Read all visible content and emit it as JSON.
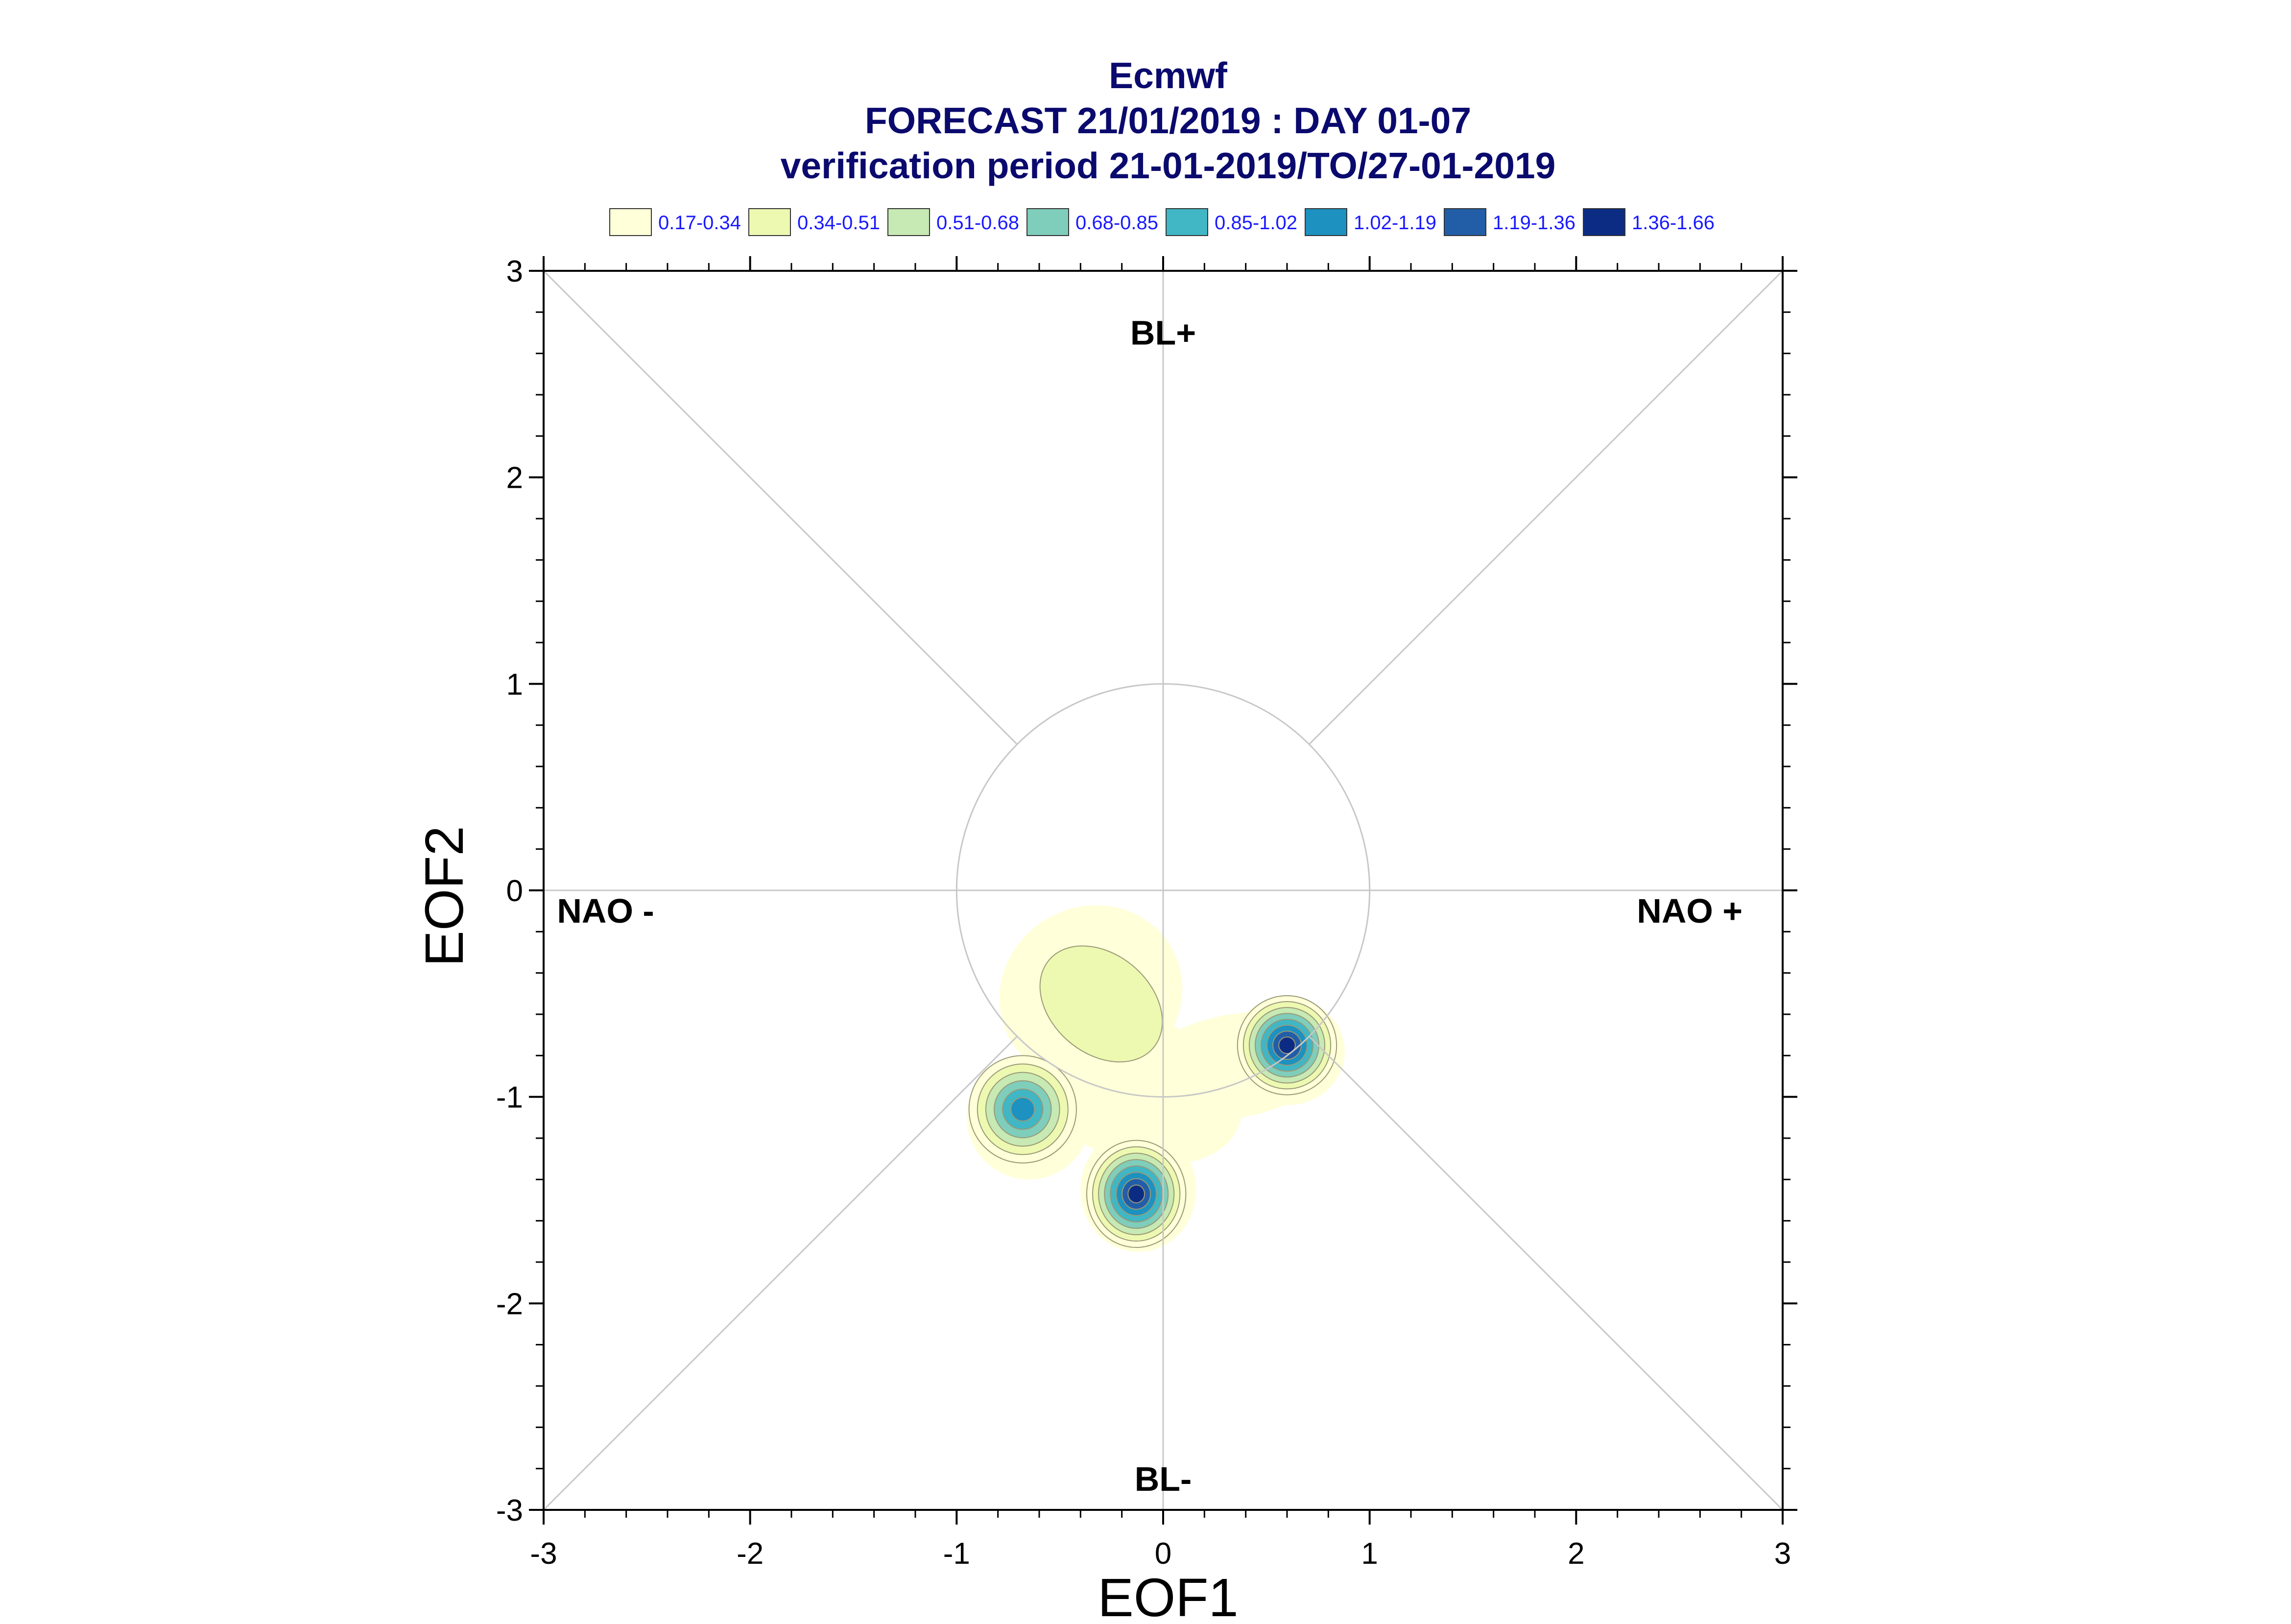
{
  "chart_data": {
    "type": "heatmap",
    "title": "Ecmwf",
    "subtitle_lines": [
      "FORECAST 21/01/2019 : DAY 01-07",
      "verification period 21-01-2019/TO/27-01-2019"
    ],
    "xlabel": "EOF1",
    "ylabel": "EOF2",
    "xlim": [
      -3,
      3
    ],
    "ylim": [
      -3,
      3
    ],
    "xticks": [
      -3,
      -2,
      -1,
      0,
      1,
      2,
      3
    ],
    "yticks": [
      -3,
      -2,
      -1,
      0,
      1,
      2,
      3
    ],
    "grid": false,
    "legend_position": "top",
    "legend": [
      {
        "label": "0.17-0.34",
        "color": "#ffffd9"
      },
      {
        "label": "0.34-0.51",
        "color": "#edf8b1"
      },
      {
        "label": "0.51-0.68",
        "color": "#c7e9b4"
      },
      {
        "label": "0.68-0.85",
        "color": "#7fcdbb"
      },
      {
        "label": "0.85-1.02",
        "color": "#41b6c4"
      },
      {
        "label": "1.02-1.19",
        "color": "#1d91c0"
      },
      {
        "label": "1.19-1.36",
        "color": "#225ea8"
      },
      {
        "label": "1.36-1.66",
        "color": "#0c2c84"
      }
    ],
    "regime_labels": [
      {
        "text": "BL+",
        "x": 0,
        "y": 2.7
      },
      {
        "text": "BL-",
        "x": 0,
        "y": -2.85
      },
      {
        "text": "NAO -",
        "x": -2.7,
        "y": -0.1
      },
      {
        "text": "NAO +",
        "x": 2.55,
        "y": -0.1
      }
    ],
    "reference_circle_radius": 1,
    "density_peaks": [
      {
        "x": 0.6,
        "y": -0.75,
        "peak": 1.66
      },
      {
        "x": -0.13,
        "y": -1.47,
        "peak": 1.66
      },
      {
        "x": -0.68,
        "y": -1.06,
        "peak": 1.02
      },
      {
        "x": -0.4,
        "y": -0.45,
        "peak": 0.51
      }
    ]
  }
}
